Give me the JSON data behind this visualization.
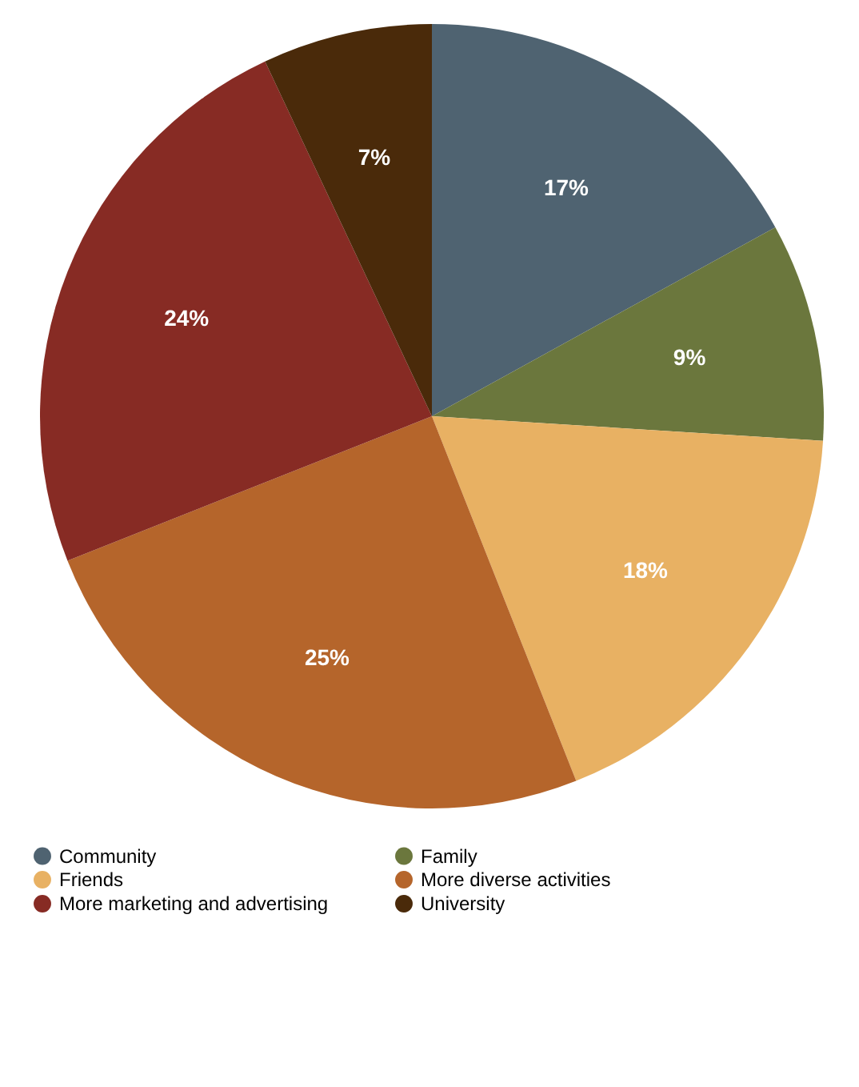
{
  "chart_data": {
    "type": "pie",
    "categories": [
      "Community",
      "Family",
      "Friends",
      "More diverse activities",
      "More marketing and advertising",
      "University"
    ],
    "values": [
      17,
      9,
      18,
      25,
      24,
      7
    ],
    "colors": [
      "#4f6371",
      "#6b773d",
      "#e8b163",
      "#b5652b",
      "#872b24",
      "#4a2a0a"
    ],
    "value_labels": [
      "17%",
      "9%",
      "18%",
      "25%",
      "24%",
      "7%"
    ],
    "legend": "bottom"
  }
}
